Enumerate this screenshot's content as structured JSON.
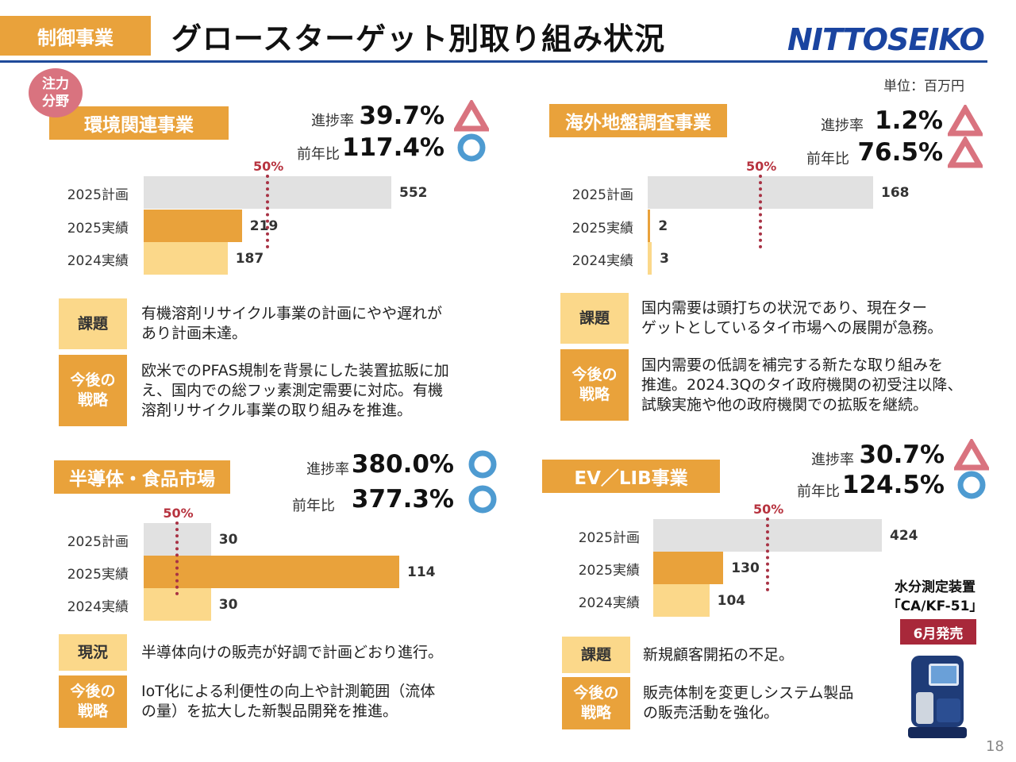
{
  "header": {
    "segment": "制御事業",
    "title": "グロースターゲット別取り組み状況",
    "logo_text": "NITTOSEIKO",
    "unit": "単位：百万円"
  },
  "focus_badge": "注力\n分野",
  "labels": {
    "progress": "進捗率",
    "yoy": "前年比",
    "half": "50%"
  },
  "sections": [
    {
      "name": "環境関連事業",
      "progress": "39.7%",
      "progress_mark": "triangle",
      "yoy": "117.4%",
      "yoy_mark": "circle",
      "notes": [
        {
          "label": "課題",
          "text": "有機溶剤リサイクル事業の計画にやや遅れが\nあり計画未達。"
        },
        {
          "label": "今後の\n戦略",
          "text": "欧米でのPFAS規制を背景にした装置拡販に加\nえ、国内での総フッ素測定需要に対応。有機\n溶剤リサイクル事業の取り組みを推進。"
        }
      ]
    },
    {
      "name": "海外地盤調査事業",
      "progress": "1.2%",
      "progress_mark": "triangle",
      "yoy": "76.5%",
      "yoy_mark": "triangle",
      "notes": [
        {
          "label": "課題",
          "text": "国内需要は頭打ちの状況であり、現在ター\nゲットとしているタイ市場への展開が急務。"
        },
        {
          "label": "今後の\n戦略",
          "text": "国内需要の低調を補完する新たな取り組みを\n推進。2024.3Qのタイ政府機関の初受注以降、\n試験実施や他の政府機関での拡販を継続。"
        }
      ]
    },
    {
      "name": "半導体・食品市場",
      "progress": "380.0%",
      "progress_mark": "circle",
      "yoy": "377.3%",
      "yoy_mark": "circle",
      "notes": [
        {
          "label": "現況",
          "text": "半導体向けの販売が好調で計画どおり進行。"
        },
        {
          "label": "今後の\n戦略",
          "text": "IoT化による利便性の向上や計測範囲（流体\nの量）を拡大した新製品開発を推進。"
        }
      ]
    },
    {
      "name": "EV／LIB事業",
      "progress": "30.7%",
      "progress_mark": "triangle",
      "yoy": "124.5%",
      "yoy_mark": "circle",
      "notes": [
        {
          "label": "課題",
          "text": "新規顧客開拓の不足。"
        },
        {
          "label": "今後の\n戦略",
          "text": "販売体制を変更しシステム製品\nの販売活動を強化。"
        }
      ]
    }
  ],
  "chart_data": [
    {
      "type": "bar",
      "title": "環境関連事業",
      "categories": [
        "2025計画",
        "2025実績",
        "2024実績"
      ],
      "values": [
        552,
        219,
        187
      ],
      "reference_line": "50%"
    },
    {
      "type": "bar",
      "title": "海外地盤調査事業",
      "categories": [
        "2025計画",
        "2025実績",
        "2024実績"
      ],
      "values": [
        168,
        2,
        3
      ],
      "reference_line": "50%"
    },
    {
      "type": "bar",
      "title": "半導体・食品市場",
      "categories": [
        "2025計画",
        "2025実績",
        "2024実績"
      ],
      "values": [
        30,
        114,
        30
      ],
      "reference_line": "50%"
    },
    {
      "type": "bar",
      "title": "EV／LIB事業",
      "categories": [
        "2025計画",
        "2025実績",
        "2024実績"
      ],
      "values": [
        424,
        130,
        104
      ],
      "reference_line": "50%"
    }
  ],
  "colors": {
    "plan": "#e1e1e1",
    "actual_2025": "#e9a23b",
    "actual_2024": "#fbd88a",
    "triangle": "#d9737f",
    "circle": "#4e9bd1",
    "accent": "#e9a23b"
  },
  "product": {
    "name": "水分測定装置\n「CA/KF-51」",
    "badge": "6月発売"
  },
  "page_number": "18"
}
